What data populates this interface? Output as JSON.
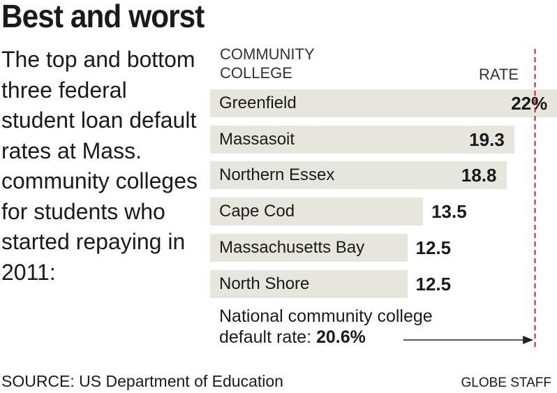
{
  "chart_data": {
    "type": "bar",
    "orientation": "horizontal",
    "title": "Best and worst",
    "subtitle": "The top and bottom three federal student loan default rates at Mass. community colleges for students who started repaying in 2011:",
    "category_header": "COMMUNITY COLLEGE",
    "value_header": "RATE",
    "categories": [
      "Greenfield",
      "Massasoit",
      "Northern Essex",
      "Cape Cod",
      "Massachusetts Bay",
      "North Shore"
    ],
    "values": [
      22,
      19.3,
      18.8,
      13.5,
      12.5,
      12.5
    ],
    "value_labels": [
      "22%",
      "19.3",
      "18.8",
      "13.5",
      "12.5",
      "12.5"
    ],
    "color": "#e6e6df",
    "reference": {
      "value": 20.6,
      "label": "20.6%",
      "text": "National community college default rate:",
      "color": "#d62027"
    },
    "source": "SOURCE: US Department of Education",
    "credit": "GLOBE STAFF"
  }
}
